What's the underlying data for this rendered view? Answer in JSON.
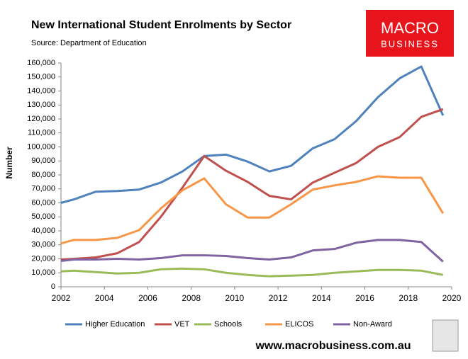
{
  "chart_data": {
    "type": "line",
    "title": "New International Student Enrolments by Sector",
    "subtitle": "Source: Department of Education",
    "y_label": "Number",
    "logo": {
      "line1": "MACRO",
      "line2": "BUSINESS"
    },
    "footer": "www.macrobusiness.com.au",
    "x": [
      2002,
      2002.6,
      2003.6,
      2004.6,
      2005.6,
      2006.6,
      2007.6,
      2008.6,
      2009.6,
      2010.6,
      2011.6,
      2012.6,
      2013.6,
      2014.6,
      2015.6,
      2016.6,
      2017.6,
      2018.6,
      2019.6
    ],
    "series": [
      {
        "name": "Higher Education",
        "color": "#4f81bd",
        "values": [
          60000,
          62500,
          68000,
          68500,
          69500,
          74500,
          82500,
          93500,
          94500,
          89500,
          82500,
          86500,
          99000,
          105500,
          118500,
          135500,
          149000,
          157500,
          122500
        ]
      },
      {
        "name": "VET",
        "color": "#c0504d",
        "values": [
          19500,
          20000,
          21000,
          24000,
          32000,
          50000,
          71000,
          93500,
          83000,
          75000,
          65000,
          62500,
          74500,
          81500,
          88500,
          100000,
          107000,
          121500,
          127000
        ]
      },
      {
        "name": "Schools",
        "color": "#9bbb59",
        "values": [
          11000,
          11500,
          10500,
          9500,
          10000,
          12500,
          13000,
          12500,
          10000,
          8500,
          7500,
          8000,
          8500,
          10000,
          11000,
          12000,
          12000,
          11500,
          8500
        ]
      },
      {
        "name": "ELICOS",
        "color": "#f79646",
        "values": [
          31000,
          33500,
          33500,
          35000,
          40500,
          56000,
          69000,
          77500,
          59000,
          49500,
          49500,
          59000,
          69500,
          72500,
          75000,
          79000,
          78000,
          78000,
          52500
        ]
      },
      {
        "name": "Non-Award",
        "color": "#8064a2",
        "values": [
          18500,
          19500,
          19500,
          20000,
          19500,
          20500,
          22500,
          22500,
          22000,
          20500,
          19500,
          21000,
          26000,
          27000,
          31500,
          33500,
          33500,
          32000,
          18000
        ]
      }
    ],
    "xlim": [
      2002,
      2020
    ],
    "xticks": [
      2002,
      2004,
      2006,
      2008,
      2010,
      2012,
      2014,
      2016,
      2018,
      2020
    ],
    "ylim": [
      0,
      160000
    ],
    "yticks": [
      0,
      {
        "value": 10000,
        "label": "10,000"
      },
      {
        "value": 20000,
        "label": "20,000"
      },
      {
        "value": 30000,
        "label": "30,000"
      },
      {
        "value": 40000,
        "label": "40,000"
      },
      {
        "value": 50000,
        "label": "50,000"
      },
      {
        "value": 60000,
        "label": "60,000"
      },
      {
        "value": 70000,
        "label": "70,000"
      },
      {
        "value": 80000,
        "label": "80,000"
      },
      {
        "value": 90000,
        "label": "90,000"
      },
      {
        "value": 100000,
        "label": "100,000"
      },
      {
        "value": 110000,
        "label": "110,000"
      },
      {
        "value": 120000,
        "label": "120,000"
      },
      {
        "value": 130000,
        "label": "130,000"
      },
      {
        "value": 140000,
        "label": "140,000"
      },
      {
        "value": 150000,
        "label": "150,000"
      },
      {
        "value": 160000,
        "label": "160,000"
      }
    ],
    "grid": false,
    "legend": "bottom"
  }
}
